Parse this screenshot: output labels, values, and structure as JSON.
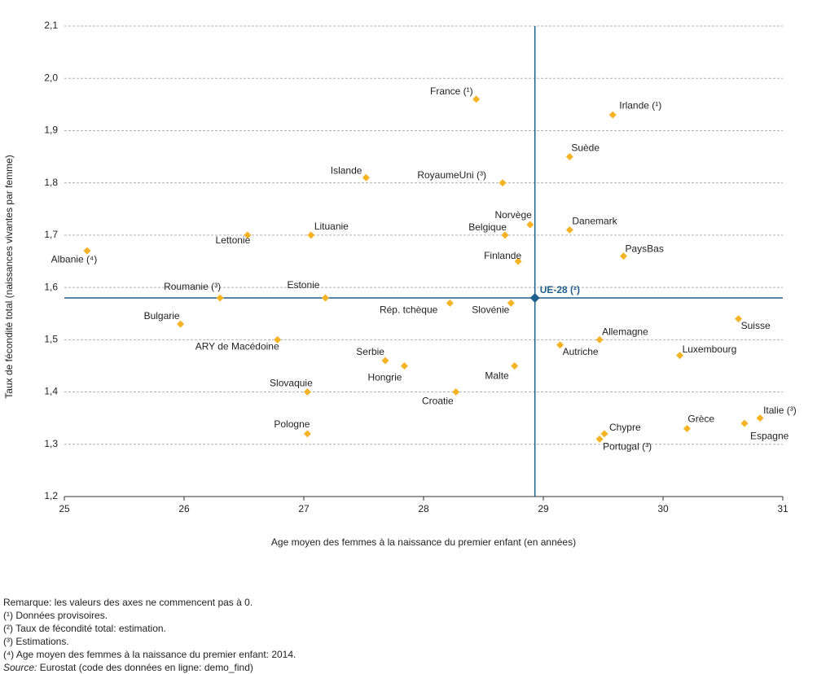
{
  "chart_data": {
    "type": "scatter",
    "xlabel": "Age moyen des femmes à la naissance du premier enfant (en années)",
    "ylabel": "Taux de fécondité total (naissances vivantes par femme)",
    "xlim": [
      25,
      31
    ],
    "xticks": [
      25,
      26,
      27,
      28,
      29,
      30,
      31
    ],
    "ylim": [
      1.2,
      2.1
    ],
    "yticks": [
      {
        "value": 1.2,
        "label": "1,2"
      },
      {
        "value": 1.3,
        "label": "1,3"
      },
      {
        "value": 1.4,
        "label": "1,4"
      },
      {
        "value": 1.5,
        "label": "1,5"
      },
      {
        "value": 1.6,
        "label": "1,6"
      },
      {
        "value": 1.7,
        "label": "1,7"
      },
      {
        "value": 1.8,
        "label": "1,8"
      },
      {
        "value": 1.9,
        "label": "1,9"
      },
      {
        "value": 2.0,
        "label": "2,0"
      },
      {
        "value": 2.1,
        "label": "2,1"
      }
    ],
    "grid": true,
    "color": "#f5b324",
    "points": [
      {
        "label": "France (¹)",
        "x": 28.44,
        "y": 1.96
      },
      {
        "label": "Irlande (¹)",
        "x": 29.58,
        "y": 1.93
      },
      {
        "label": "Suède",
        "x": 29.22,
        "y": 1.85
      },
      {
        "label": "Islande",
        "x": 27.52,
        "y": 1.81
      },
      {
        "label": "RoyaumeUni (³)",
        "x": 28.66,
        "y": 1.8
      },
      {
        "label": "Norvège",
        "x": 28.89,
        "y": 1.72
      },
      {
        "label": "Danemark",
        "x": 29.22,
        "y": 1.71
      },
      {
        "label": "Belgique",
        "x": 28.68,
        "y": 1.7
      },
      {
        "label": "Lettonie",
        "x": 26.53,
        "y": 1.7
      },
      {
        "label": "Lituanie",
        "x": 27.06,
        "y": 1.7
      },
      {
        "label": "Albanie (⁴)",
        "x": 25.19,
        "y": 1.67
      },
      {
        "label": "PaysBas",
        "x": 29.67,
        "y": 1.66
      },
      {
        "label": "Finlande",
        "x": 28.79,
        "y": 1.65
      },
      {
        "label": "Roumanie (³)",
        "x": 26.3,
        "y": 1.58
      },
      {
        "label": "Estonie",
        "x": 27.18,
        "y": 1.58
      },
      {
        "label": "Rép. tchèque",
        "x": 28.22,
        "y": 1.57
      },
      {
        "label": "Slovénie",
        "x": 28.73,
        "y": 1.57
      },
      {
        "label": "Bulgarie",
        "x": 25.97,
        "y": 1.53
      },
      {
        "label": "Suisse",
        "x": 30.63,
        "y": 1.54
      },
      {
        "label": "Allemagne",
        "x": 29.47,
        "y": 1.5
      },
      {
        "label": "ARY  de Macédoine",
        "x": 26.78,
        "y": 1.5
      },
      {
        "label": "Autriche",
        "x": 29.14,
        "y": 1.49
      },
      {
        "label": "Luxembourg",
        "x": 30.14,
        "y": 1.47
      },
      {
        "label": "Serbie",
        "x": 27.68,
        "y": 1.46
      },
      {
        "label": "Hongrie",
        "x": 27.84,
        "y": 1.45
      },
      {
        "label": "Malte",
        "x": 28.76,
        "y": 1.45
      },
      {
        "label": "Slovaquie",
        "x": 27.03,
        "y": 1.4
      },
      {
        "label": "Croatie",
        "x": 28.27,
        "y": 1.4
      },
      {
        "label": "Italie (³)",
        "x": 30.81,
        "y": 1.35
      },
      {
        "label": "Grèce",
        "x": 30.2,
        "y": 1.33
      },
      {
        "label": "Espagne",
        "x": 30.68,
        "y": 1.34
      },
      {
        "label": "Chypre",
        "x": 29.51,
        "y": 1.32
      },
      {
        "label": "Portugal (³)",
        "x": 29.47,
        "y": 1.31
      },
      {
        "label": "Pologne",
        "x": 27.03,
        "y": 1.32
      }
    ],
    "reference": {
      "label": "UE-28 (²)",
      "x": 28.93,
      "y": 1.58,
      "color": "#1f5f8b"
    }
  },
  "notes": {
    "remark": "Remarque: les valeurs des axes ne commencent pas à 0.",
    "lines": [
      "(¹) Données provisoires.",
      "(²) Taux de fécondité total: estimation.",
      "(³) Estimations.",
      "(⁴) Age moyen des femmes à la naissance du premier enfant: 2014."
    ],
    "source_label": "Source:",
    "source_text": "Eurostat (code des données en ligne: demo_find)"
  }
}
